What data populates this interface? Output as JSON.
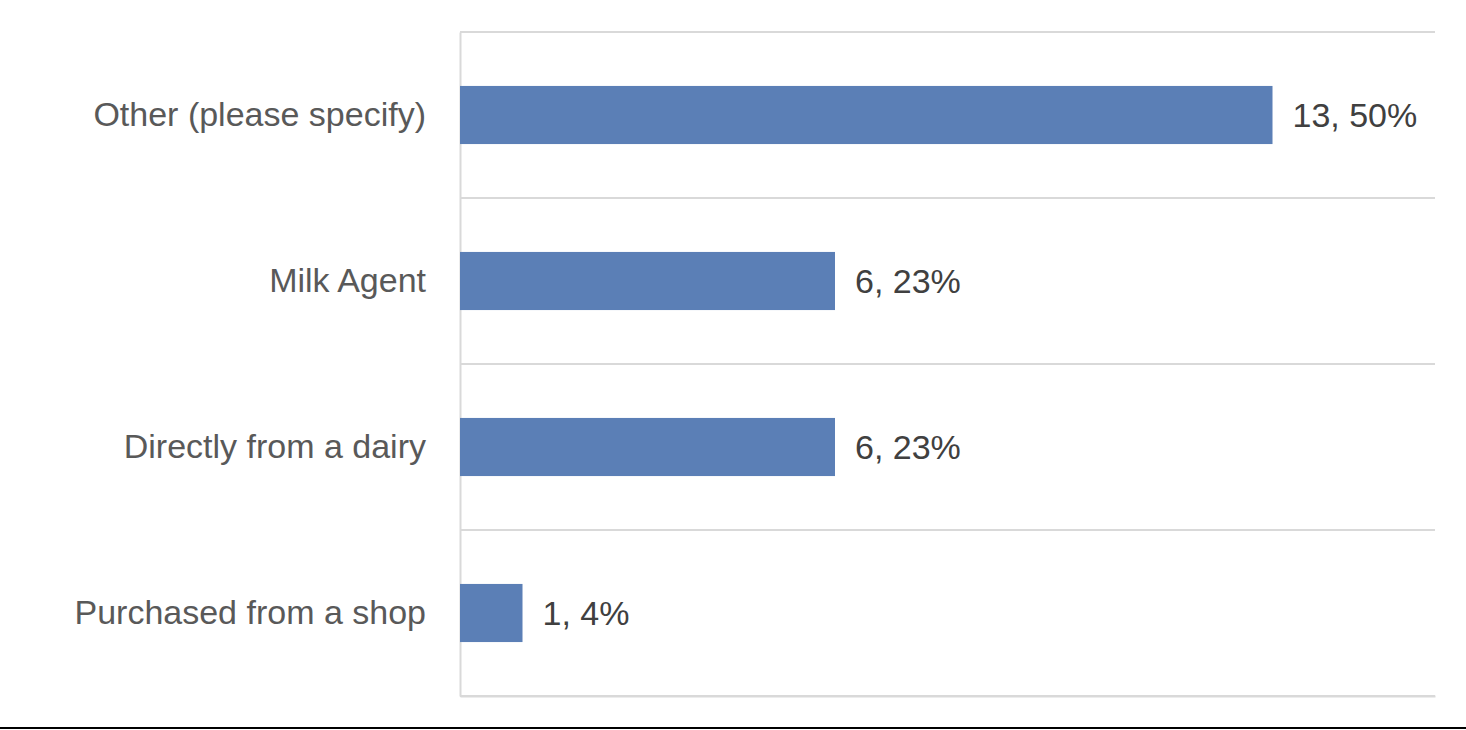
{
  "chart_data": {
    "type": "bar",
    "orientation": "horizontal",
    "categories": [
      "Other (please specify)",
      "Milk Agent",
      "Directly from a dairy",
      "Purchased from a shop"
    ],
    "values": [
      13,
      6,
      6,
      1
    ],
    "value_labels": [
      "13, 50%",
      "6, 23%",
      "6, 23%",
      "1, 4%"
    ],
    "data_labels": true,
    "color": "#5b7fb6",
    "xlim": [
      0,
      15.6
    ],
    "xticks": [],
    "tick_labels": "y"
  }
}
